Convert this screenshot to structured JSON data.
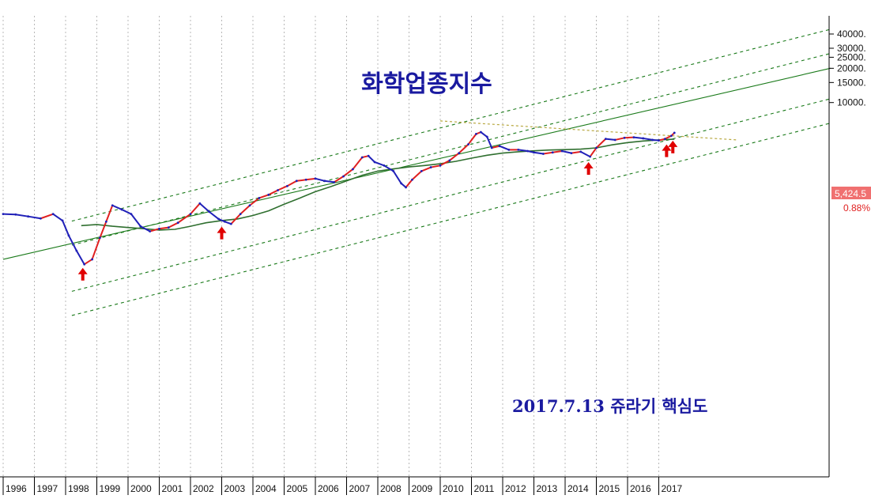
{
  "chart_data": {
    "type": "line",
    "title": "화학업종지수",
    "annotation": "2017.7.13 쥬라기 핵심도",
    "y_scale": "log",
    "ylim": [
      330,
      50000
    ],
    "x_ticks": [
      "1996",
      "1997",
      "1998",
      "1999",
      "2000",
      "2001",
      "2002",
      "2003",
      "2004",
      "2005",
      "2006",
      "2007",
      "2008",
      "2009",
      "2010",
      "2011",
      "2012",
      "2013",
      "2014",
      "2015",
      "2016",
      "2017"
    ],
    "y_ticks": [
      "40000.",
      "30000.",
      "25000.",
      "20000.",
      "15000.",
      "10000."
    ],
    "y_tick_values": [
      40000,
      30000,
      25000,
      20000,
      15000,
      10000
    ],
    "last_value_label": "5,424.5",
    "last_change_label": "0.88%",
    "grid": "vertical dotted",
    "colors": {
      "price": "#2020b8",
      "price_up": "#e02020",
      "trend_channel": "#1a7a1a",
      "moving_average": "#2f6f2f",
      "resistance": "#b8a840",
      "arrow": "#e00000",
      "title": "#1a1aa0",
      "badge": "#f07070"
    },
    "series": [
      {
        "name": "",
        "values": [
          [
            1996.0,
            1050
          ],
          [
            1996.4,
            1040
          ],
          [
            1996.8,
            1000
          ],
          [
            1997.2,
            960
          ],
          [
            1997.6,
            1050
          ],
          [
            1997.9,
            920
          ],
          [
            1998.1,
            680
          ],
          [
            1998.35,
            500
          ],
          [
            1998.6,
            380
          ],
          [
            1998.85,
            420
          ],
          [
            1999.1,
            650
          ],
          [
            1999.3,
            900
          ],
          [
            1999.5,
            1250
          ],
          [
            1999.8,
            1150
          ],
          [
            2000.1,
            1050
          ],
          [
            2000.4,
            820
          ],
          [
            2000.7,
            740
          ],
          [
            2001.0,
            780
          ],
          [
            2001.3,
            800
          ],
          [
            2001.6,
            880
          ],
          [
            2002.0,
            1050
          ],
          [
            2002.3,
            1300
          ],
          [
            2002.6,
            1100
          ],
          [
            2002.9,
            950
          ],
          [
            2003.1,
            900
          ],
          [
            2003.3,
            860
          ],
          [
            2003.6,
            1050
          ],
          [
            2003.9,
            1250
          ],
          [
            2004.2,
            1450
          ],
          [
            2004.5,
            1550
          ],
          [
            2004.8,
            1700
          ],
          [
            2005.1,
            1850
          ],
          [
            2005.4,
            2050
          ],
          [
            2005.7,
            2100
          ],
          [
            2006.0,
            2150
          ],
          [
            2006.3,
            2050
          ],
          [
            2006.6,
            2000
          ],
          [
            2006.9,
            2250
          ],
          [
            2007.2,
            2600
          ],
          [
            2007.5,
            3300
          ],
          [
            2007.7,
            3400
          ],
          [
            2007.9,
            3000
          ],
          [
            2008.2,
            2800
          ],
          [
            2008.5,
            2500
          ],
          [
            2008.75,
            1950
          ],
          [
            2008.9,
            1800
          ],
          [
            2009.1,
            2100
          ],
          [
            2009.4,
            2500
          ],
          [
            2009.7,
            2700
          ],
          [
            2010.0,
            2800
          ],
          [
            2010.3,
            3100
          ],
          [
            2010.6,
            3600
          ],
          [
            2010.9,
            4300
          ],
          [
            2011.15,
            5300
          ],
          [
            2011.3,
            5500
          ],
          [
            2011.5,
            5000
          ],
          [
            2011.65,
            4000
          ],
          [
            2011.9,
            4150
          ],
          [
            2012.2,
            3850
          ],
          [
            2012.5,
            3850
          ],
          [
            2012.8,
            3750
          ],
          [
            2013.0,
            3650
          ],
          [
            2013.3,
            3550
          ],
          [
            2013.6,
            3650
          ],
          [
            2013.9,
            3750
          ],
          [
            2014.2,
            3600
          ],
          [
            2014.5,
            3700
          ],
          [
            2014.8,
            3350
          ],
          [
            2015.0,
            4000
          ],
          [
            2015.3,
            4800
          ],
          [
            2015.6,
            4700
          ],
          [
            2015.9,
            4900
          ],
          [
            2016.2,
            4950
          ],
          [
            2016.5,
            4850
          ],
          [
            2016.8,
            4700
          ],
          [
            2017.0,
            4650
          ],
          [
            2017.2,
            4800
          ],
          [
            2017.4,
            5100
          ],
          [
            2017.5,
            5424.5
          ]
        ]
      },
      {
        "name": "",
        "values": [
          [
            1998.5,
            830
          ],
          [
            1999.0,
            850
          ],
          [
            1999.5,
            820
          ],
          [
            2000.0,
            800
          ],
          [
            2000.5,
            780
          ],
          [
            2001.0,
            760
          ],
          [
            2001.5,
            770
          ],
          [
            2002.0,
            820
          ],
          [
            2002.5,
            880
          ],
          [
            2003.0,
            920
          ],
          [
            2003.5,
            950
          ],
          [
            2004.0,
            1020
          ],
          [
            2004.5,
            1120
          ],
          [
            2005.0,
            1280
          ],
          [
            2005.5,
            1450
          ],
          [
            2006.0,
            1650
          ],
          [
            2006.5,
            1830
          ],
          [
            2007.0,
            2050
          ],
          [
            2007.5,
            2300
          ],
          [
            2008.0,
            2500
          ],
          [
            2008.5,
            2620
          ],
          [
            2009.0,
            2720
          ],
          [
            2009.5,
            2800
          ],
          [
            2010.0,
            2900
          ],
          [
            2010.5,
            3050
          ],
          [
            2011.0,
            3250
          ],
          [
            2011.5,
            3450
          ],
          [
            2012.0,
            3600
          ],
          [
            2012.5,
            3700
          ],
          [
            2013.0,
            3770
          ],
          [
            2013.5,
            3830
          ],
          [
            2014.0,
            3860
          ],
          [
            2014.5,
            3900
          ],
          [
            2015.0,
            4000
          ],
          [
            2015.5,
            4250
          ],
          [
            2016.0,
            4450
          ],
          [
            2016.5,
            4600
          ],
          [
            2017.0,
            4700
          ],
          [
            2017.5,
            4780
          ]
        ]
      }
    ],
    "trend_lines": [
      {
        "style": "solid",
        "from": [
          1996.0,
          420
        ],
        "to": [
          2022.5,
          20000
        ]
      },
      {
        "style": "dashed",
        "from": [
          1998.2,
          910
        ],
        "to": [
          2022.5,
          44000
        ]
      },
      {
        "style": "dashed",
        "from": [
          1998.2,
          560
        ],
        "to": [
          2022.5,
          27000
        ]
      },
      {
        "style": "dashed",
        "from": [
          1998.2,
          220
        ],
        "to": [
          2022.5,
          10800
        ]
      },
      {
        "style": "dashed",
        "from": [
          1998.2,
          135
        ],
        "to": [
          2022.5,
          6600
        ]
      }
    ],
    "resistance_line": {
      "from": [
        2010.0,
        6900
      ],
      "to": [
        2019.5,
        4700
      ]
    },
    "arrows": [
      1998.55,
      2003.0,
      2014.75,
      2017.25,
      2017.45
    ]
  }
}
